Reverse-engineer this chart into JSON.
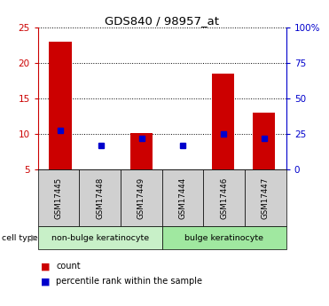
{
  "title": "GDS840 / 98957_at",
  "samples": [
    "GSM17445",
    "GSM17448",
    "GSM17449",
    "GSM17444",
    "GSM17446",
    "GSM17447"
  ],
  "counts": [
    23,
    5.1,
    10.2,
    5.1,
    18.5,
    13
  ],
  "percentile_ranks": [
    28,
    17,
    22,
    17,
    25,
    22
  ],
  "ylim_left": [
    5,
    25
  ],
  "ylim_right": [
    0,
    100
  ],
  "yticks_left": [
    5,
    10,
    15,
    20,
    25
  ],
  "yticks_right": [
    0,
    25,
    50,
    75,
    100
  ],
  "ytick_labels_right": [
    "0",
    "25",
    "50",
    "75",
    "100%"
  ],
  "bar_color": "#cc0000",
  "marker_color": "#0000cc",
  "groups": [
    {
      "label": "non-bulge keratinocyte",
      "n": 3,
      "color": "#c8f0c8"
    },
    {
      "label": "bulge keratinocyte",
      "n": 3,
      "color": "#a0e8a0"
    }
  ],
  "cell_type_label": "cell type",
  "legend_count": "count",
  "legend_percentile": "percentile rank within the sample",
  "sample_box_color": "#d0d0d0",
  "background_color": "#ffffff"
}
